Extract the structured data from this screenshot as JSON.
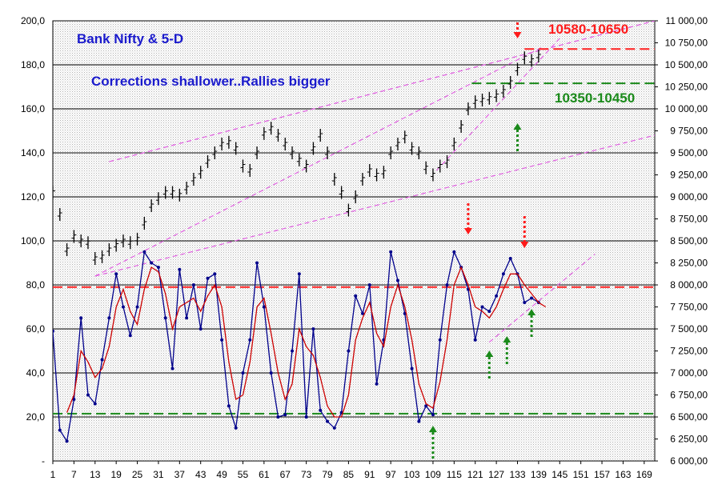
{
  "chart_data": {
    "type": "line",
    "title": "Bank Nifty & 5-D",
    "subtitle": "Corrections shallower..Rallies bigger",
    "annotations": {
      "resistance_zone": "10580-10650",
      "support_zone": "10350-10450"
    },
    "x_ticks": [
      "1",
      "7",
      "13",
      "19",
      "25",
      "31",
      "37",
      "43",
      "49",
      "55",
      "61",
      "67",
      "73",
      "79",
      "85",
      "91",
      "97",
      "103",
      "109",
      "115",
      "121",
      "127",
      "133",
      "139",
      "145",
      "151",
      "157",
      "163",
      "169"
    ],
    "left_axis": {
      "ylim": [
        0,
        200
      ],
      "ticks": [
        "-",
        "20,0",
        "40,0",
        "60,0",
        "80,0",
        "100,0",
        "120,0",
        "140,0",
        "160,0",
        "180,0",
        "200,0"
      ]
    },
    "right_axis": {
      "ylim": [
        6000,
        11000
      ],
      "ticks": [
        "6 000,00",
        "6 250,00",
        "6 500,00",
        "6 750,00",
        "7 000,00",
        "7 250,00",
        "7 500,00",
        "7 750,00",
        "8 000,00",
        "8 250,00",
        "8 500,00",
        "8 750,00",
        "9 000,00",
        "9 250,00",
        "9 500,00",
        "9 750,00",
        "10 000,00",
        "10 250,00",
        "10 500,00",
        "10 750,00",
        "11 000,00"
      ]
    },
    "grid": true,
    "xlim": [
      1,
      172
    ],
    "price_series": {
      "name": "Bank Nifty",
      "axis": "right",
      "x": [
        1,
        3,
        5,
        7,
        9,
        11,
        13,
        15,
        17,
        19,
        21,
        23,
        25,
        27,
        29,
        31,
        33,
        35,
        37,
        39,
        41,
        43,
        45,
        47,
        49,
        51,
        53,
        55,
        57,
        59,
        61,
        63,
        65,
        67,
        69,
        71,
        73,
        75,
        77,
        79,
        81,
        83,
        85,
        87,
        89,
        91,
        93,
        95,
        97,
        99,
        101,
        103,
        105,
        107,
        109,
        111,
        113,
        115,
        117,
        119,
        121,
        123,
        125,
        127,
        129,
        131,
        133,
        135,
        137,
        139
      ],
      "values": [
        9050,
        8800,
        8400,
        8550,
        8500,
        8480,
        8300,
        8320,
        8400,
        8450,
        8500,
        8480,
        8520,
        8700,
        8900,
        8980,
        9050,
        9050,
        9020,
        9100,
        9200,
        9280,
        9400,
        9500,
        9600,
        9620,
        9550,
        9350,
        9300,
        9500,
        9720,
        9780,
        9700,
        9600,
        9500,
        9420,
        9350,
        9550,
        9700,
        9500,
        9200,
        9050,
        8850,
        9000,
        9200,
        9300,
        9250,
        9280,
        9500,
        9600,
        9680,
        9550,
        9500,
        9330,
        9250,
        9350,
        9400,
        9600,
        9800,
        10000,
        10080,
        10100,
        10120,
        10150,
        10200,
        10300,
        10450,
        10580,
        10550,
        10600
      ]
    },
    "oscillator_series": [
      {
        "name": "5-D",
        "axis": "left",
        "color": "#00008b",
        "x": [
          1,
          3,
          5,
          7,
          9,
          11,
          13,
          15,
          17,
          19,
          21,
          23,
          25,
          27,
          29,
          31,
          33,
          35,
          37,
          39,
          41,
          43,
          45,
          47,
          49,
          51,
          53,
          55,
          57,
          59,
          61,
          63,
          65,
          67,
          69,
          71,
          73,
          75,
          77,
          79,
          81,
          83,
          85,
          87,
          89,
          91,
          93,
          95,
          97,
          99,
          101,
          103,
          105,
          107,
          109,
          111,
          113,
          115,
          117,
          119,
          121,
          123,
          125,
          127,
          129,
          131,
          133,
          135,
          137,
          139
        ],
        "values": [
          59,
          14,
          9,
          28,
          65,
          30,
          26,
          46,
          65,
          85,
          70,
          57,
          70,
          95,
          90,
          88,
          65,
          42,
          87,
          65,
          80,
          60,
          83,
          85,
          55,
          25,
          15,
          40,
          55,
          90,
          70,
          40,
          20,
          21,
          50,
          85,
          20,
          60,
          23,
          18,
          15,
          22,
          50,
          75,
          67,
          80,
          35,
          55,
          95,
          82,
          67,
          42,
          18,
          25,
          21,
          55,
          80,
          95,
          88,
          78,
          55,
          70,
          68,
          75,
          85,
          92,
          85,
          72,
          74,
          72
        ]
      },
      {
        "name": "Signal",
        "axis": "left",
        "color": "#cc0000",
        "x": [
          5,
          7,
          9,
          11,
          13,
          15,
          17,
          19,
          21,
          23,
          25,
          27,
          29,
          31,
          33,
          35,
          37,
          39,
          41,
          43,
          45,
          47,
          49,
          51,
          53,
          55,
          57,
          59,
          61,
          63,
          65,
          67,
          69,
          71,
          73,
          75,
          77,
          79,
          81,
          83,
          85,
          87,
          89,
          91,
          93,
          95,
          97,
          99,
          101,
          103,
          105,
          107,
          109,
          111,
          113,
          115,
          117,
          119,
          121,
          123,
          125,
          127,
          129,
          131,
          133,
          135,
          137,
          139,
          141
        ],
        "values": [
          22,
          30,
          50,
          45,
          38,
          42,
          52,
          70,
          78,
          68,
          62,
          78,
          88,
          86,
          76,
          60,
          70,
          72,
          74,
          68,
          75,
          80,
          70,
          45,
          28,
          30,
          45,
          70,
          74,
          58,
          40,
          28,
          35,
          60,
          52,
          48,
          38,
          25,
          20,
          20,
          30,
          55,
          65,
          72,
          58,
          52,
          70,
          80,
          70,
          55,
          35,
          26,
          24,
          36,
          55,
          80,
          88,
          80,
          70,
          68,
          65,
          70,
          78,
          85,
          85,
          80,
          76,
          72,
          70
        ]
      }
    ],
    "bullet_arrows": {
      "red_down": [
        119,
        135,
        133
      ],
      "green_up": [
        109,
        125,
        130,
        137,
        133
      ]
    }
  }
}
